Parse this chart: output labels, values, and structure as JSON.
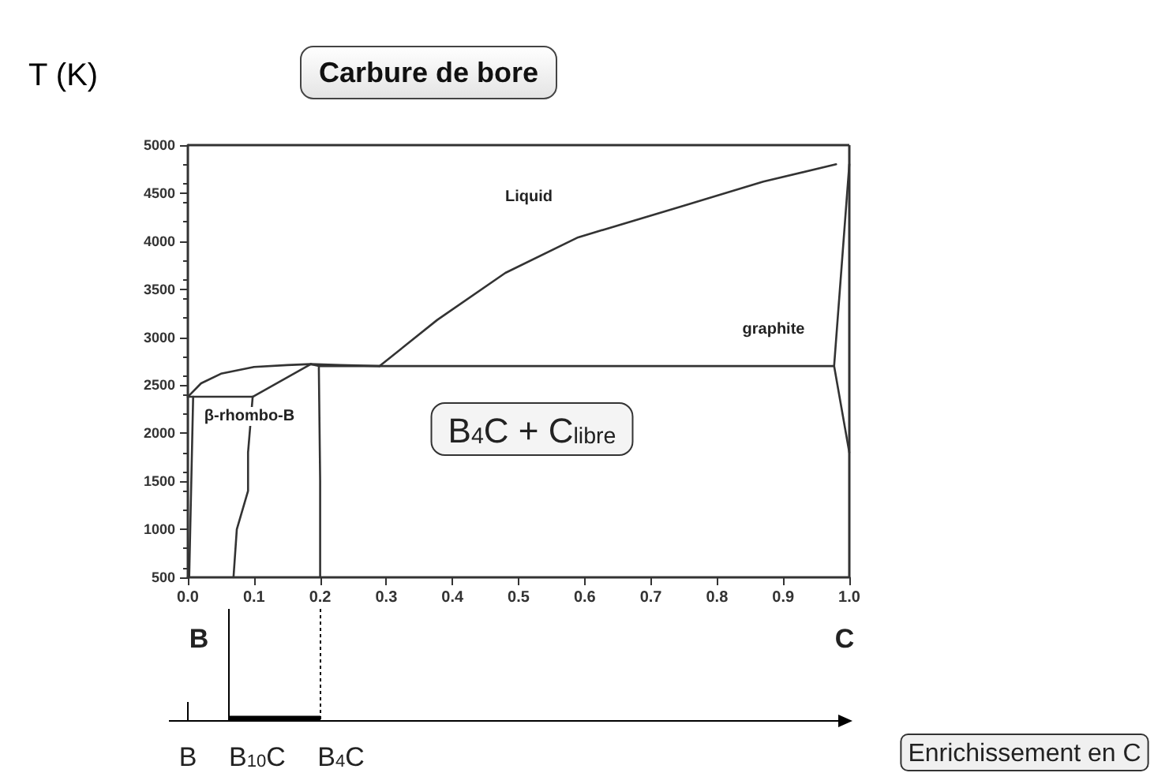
{
  "chart_data": {
    "type": "line",
    "title": "Carbure de bore",
    "ylabel": "T (K)",
    "xlim": [
      0,
      1
    ],
    "xticks": [
      {
        "value": 0,
        "label": "0.0"
      },
      0.1,
      0.2,
      0.3,
      0.4,
      0.5,
      0.6,
      0.7,
      0.8,
      0.9,
      {
        "value": 1,
        "label": "1.0"
      }
    ],
    "ylim": [
      500,
      5000
    ],
    "yticks": [
      500,
      1000,
      1500,
      2000,
      2500,
      3000,
      3500,
      4000,
      4500,
      5000
    ],
    "series": [
      {
        "color": "#333333",
        "x": [
          0.29,
          0.377,
          0.48,
          0.59,
          0.75,
          0.87,
          0.98
        ],
        "values": [
          2700,
          3180,
          3670,
          4040,
          4370,
          4620,
          4800
        ]
      },
      {
        "color": "#333333",
        "x": [
          0,
          0.02,
          0.05,
          0.1,
          0.15,
          0.186,
          0.23,
          0.29
        ],
        "values": [
          2380,
          2520,
          2620,
          2690,
          2710,
          2720,
          2710,
          2700
        ]
      },
      {
        "color": "#333333",
        "x": [
          0,
          0.098
        ],
        "values": [
          2380,
          2380
        ]
      },
      {
        "color": "#333333",
        "x": [
          0.098,
          0.186
        ],
        "values": [
          2380,
          2720
        ]
      },
      {
        "color": "#333333",
        "x": [
          0.008,
          0.002
        ],
        "values": [
          2380,
          500
        ]
      },
      {
        "color": "#333333",
        "x": [
          0.098,
          0.091,
          0.091,
          0.074,
          0.069
        ],
        "values": [
          2380,
          1800,
          1400,
          1000,
          500
        ]
      },
      {
        "color": "#333333",
        "x": [
          0.186,
          0.198,
          0.2,
          0.2
        ],
        "values": [
          2720,
          2700,
          1500,
          500
        ]
      },
      {
        "color": "#333333",
        "x": [
          0.198,
          0.977
        ],
        "values": [
          2700,
          2700
        ]
      },
      {
        "color": "#333333",
        "x": [
          1,
          0.977,
          1
        ],
        "values": [
          4800,
          2700,
          1800
        ]
      }
    ],
    "annotations": [
      "Liquid",
      "graphite",
      "β-rhombo-B",
      "B$_{4}$C + C$_{libre}$",
      "B",
      "C",
      "B",
      "B$_{10}$C",
      "B$_{4}$C",
      "Enrichissement en C"
    ],
    "marker": "none",
    "line_style": "solid",
    "grid": false
  }
}
